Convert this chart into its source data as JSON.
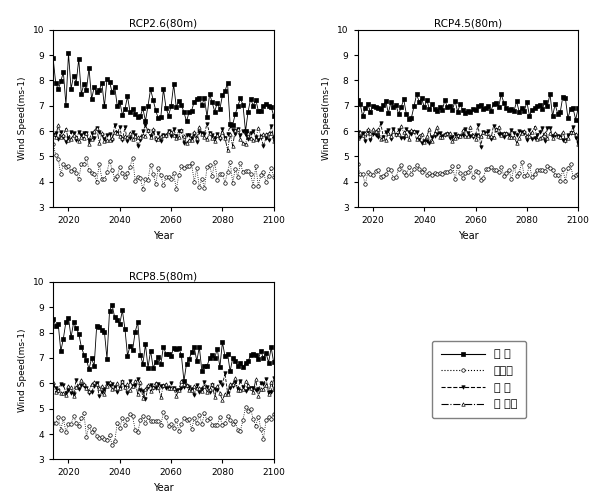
{
  "titles": [
    "RCP2.6(80m)",
    "RCP4.5(80m)",
    "RCP8.5(80m)"
  ],
  "ylabel": "Wind Speed(ms-1)",
  "xlabel": "Year",
  "ylim": [
    3,
    10
  ],
  "xlim": [
    2014,
    2100
  ],
  "yticks": [
    3,
    4,
    5,
    6,
    7,
    8,
    9,
    10
  ],
  "xticks": [
    2020,
    2040,
    2060,
    2080,
    2100
  ],
  "legend_labels": [
    "한 경",
    "대관령",
    "열 양",
    "서 남해"
  ],
  "series_styles": [
    {
      "linestyle": "-",
      "marker": "s",
      "markersize": 2.5,
      "color": "black",
      "markerfacecolor": "black"
    },
    {
      "linestyle": ":",
      "marker": "o",
      "markersize": 2.5,
      "color": "black",
      "markerfacecolor": "white"
    },
    {
      "linestyle": "--",
      "marker": "v",
      "markersize": 2.5,
      "color": "black",
      "markerfacecolor": "black"
    },
    {
      "linestyle": "-.",
      "marker": "^",
      "markersize": 2.5,
      "color": "black",
      "markerfacecolor": "white"
    }
  ]
}
